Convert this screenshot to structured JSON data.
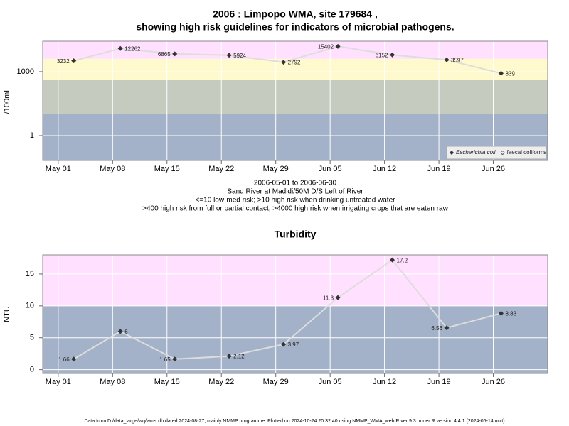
{
  "chart_data": [
    {
      "type": "line",
      "title": [
        "2006 : Limpopo WMA, site 179684 ,",
        "showing high risk guidelines for indicators of microbial pathogens."
      ],
      "y_label": "/100mL",
      "log_scale": true,
      "x": [
        "May 03",
        "May 09",
        "May 16",
        "May 23",
        "May 30",
        "Jun 06",
        "Jun 13",
        "Jun 20",
        "Jun 27"
      ],
      "xlim": [
        "Apr 29",
        "Jul 03"
      ],
      "xticks": [
        "May 01",
        "May 08",
        "May 15",
        "May 22",
        "May 29",
        "Jun 05",
        "Jun 12",
        "Jun 19",
        "Jun 26"
      ],
      "ylim": [
        0.068,
        27000
      ],
      "yticks": [
        1,
        1000
      ],
      "grid": true,
      "bands": [
        {
          "from": 0.068,
          "to": 10,
          "color": "#a3b2c9"
        },
        {
          "from": 10,
          "to": 400,
          "color": "#c6cbbf"
        },
        {
          "from": 400,
          "to": 4000,
          "color": "#fffacd"
        },
        {
          "from": 4000,
          "to": 27000,
          "color": "#ffe0ff"
        }
      ],
      "series": [
        {
          "name": "Escherichia coli",
          "color": "#333333",
          "line_color": "#dddddd",
          "marker": "diamond",
          "values": [
            3232,
            12262,
            6865,
            5924,
            2792,
            15402,
            6152,
            3597,
            839
          ]
        },
        {
          "name": "faecal coliforms",
          "color": "#333333",
          "marker": "circle",
          "values": [
            null,
            null,
            null,
            null,
            null,
            null,
            null,
            null,
            null
          ]
        }
      ],
      "legend": "bottom-right",
      "notes": [
        "2006-05-01 to 2006-06-30",
        "Sand River at Madidi/50M D/S Left of River",
        "<=10 low-med risk; >10 high risk when drinking untreated water",
        ">400 high risk from full or partial contact; >4000 high risk when irrigating crops that are eaten raw"
      ]
    },
    {
      "type": "line",
      "title": [
        "Turbidity"
      ],
      "y_label": "NTU",
      "log_scale": false,
      "x": [
        "May 03",
        "May 09",
        "May 16",
        "May 23",
        "May 30",
        "Jun 06",
        "Jun 13",
        "Jun 20",
        "Jun 27"
      ],
      "xlim": [
        "Apr 29",
        "Jul 03"
      ],
      "xticks": [
        "May 01",
        "May 08",
        "May 15",
        "May 22",
        "May 29",
        "Jun 05",
        "Jun 12",
        "Jun 19",
        "Jun 26"
      ],
      "ylim": [
        -0.6,
        18
      ],
      "yticks": [
        0,
        5,
        10,
        15
      ],
      "grid": true,
      "bands": [
        {
          "from": -0.6,
          "to": 10,
          "color": "#a3b2c9"
        },
        {
          "from": 10,
          "to": 18,
          "color": "#ffe0ff"
        }
      ],
      "series": [
        {
          "name": "Turbidity",
          "color": "#333333",
          "line_color": "#dddddd",
          "marker": "diamond",
          "values": [
            1.66,
            6,
            1.65,
            2.12,
            3.97,
            11.3,
            17.2,
            6.56,
            8.83
          ]
        }
      ]
    }
  ],
  "footer": "Data from D:/data_large/wq/wms.db dated 2024-08-27, mainly NMMP programme. Plotted on 2024-10-24 20:32:40 using NMMP_WMA_web.R ver 9.3 under R version 4.4.1 (2024-06-14 ucrt)"
}
